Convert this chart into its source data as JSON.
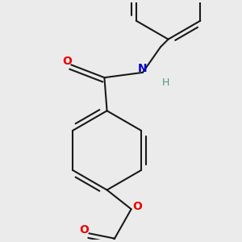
{
  "bg_color": "#ebebeb",
  "bond_color": "#1a1a1a",
  "bond_width": 1.5,
  "atom_colors": {
    "O": "#ee0000",
    "N": "#0000cc",
    "H": "#4a9a8a",
    "C": "#1a1a1a"
  },
  "font_size": 10,
  "font_size_h": 9
}
